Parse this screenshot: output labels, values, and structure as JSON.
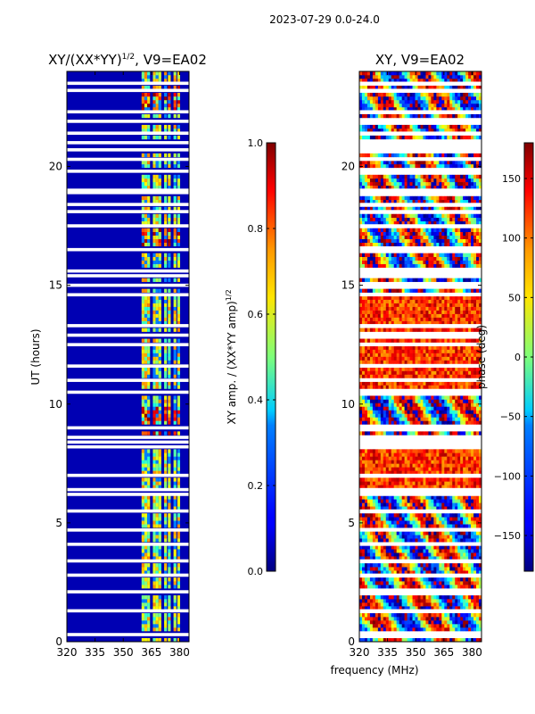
{
  "suptitle": "2023-07-29 0.0-24.0",
  "chart_data": [
    {
      "type": "heatmap",
      "title_prefix": "XY/(XX*YY)",
      "title_exponent": "1/2",
      "title_suffix": ", V9=EA02",
      "ylabel": "UT (hours)",
      "xlabel": "",
      "xlim": [
        320,
        385
      ],
      "ylim": [
        0,
        24
      ],
      "xticks": [
        320,
        335,
        350,
        365,
        380
      ],
      "yticks": [
        0,
        5,
        10,
        15,
        20
      ],
      "colormap": "jet",
      "colorbar": {
        "label_prefix": "XY amp. / (XX*YY amp)",
        "label_exponent": "1/2",
        "range": [
          0.0,
          1.0
        ],
        "ticks": [
          "0.0",
          "0.2",
          "0.4",
          "0.6",
          "0.8",
          "1.0"
        ],
        "tick_values": [
          0.0,
          0.2,
          0.4,
          0.6,
          0.8,
          1.0
        ]
      },
      "summary": {
        "background_value": 0.05,
        "band_channels_mhz": [
          360.5,
          362,
          363.5,
          366.5,
          368,
          369.5,
          372.5,
          374.5,
          377.5,
          379.5
        ],
        "high_ut_ranges": [
          [
            8.6,
            9.9
          ],
          [
            16.6,
            17.4
          ],
          [
            22.2,
            23.4
          ]
        ]
      }
    },
    {
      "type": "heatmap",
      "title": "XY, V9=EA02",
      "ylabel": "",
      "xlabel": "frequency (MHz)",
      "xlim": [
        320,
        385
      ],
      "ylim": [
        0,
        24
      ],
      "xticks": [
        320,
        335,
        350,
        365,
        380
      ],
      "yticks": [
        0,
        5,
        10,
        15,
        20
      ],
      "colormap": "jet",
      "colorbar": {
        "label": "phase (deg)",
        "range": [
          -180,
          180
        ],
        "ticks": [
          "−150",
          "−100",
          "−50",
          "0",
          "50",
          "100",
          "150"
        ],
        "tick_values": [
          -150,
          -100,
          -50,
          0,
          50,
          100,
          150
        ]
      },
      "summary": {
        "phase_range_deg": [
          -180,
          180
        ],
        "red_phase_ut_ranges": [
          [
            6.5,
            8.5
          ],
          [
            10.5,
            14.5
          ]
        ]
      }
    }
  ],
  "flagged_ut_rows": [
    0.3,
    1.3,
    2.1,
    2.8,
    3.4,
    4.1,
    4.7,
    5.5,
    6.2,
    6.4,
    7.0,
    8.2,
    8.4,
    8.6,
    9.0,
    10.5,
    11.0,
    11.6,
    12.5,
    12.9,
    13.3,
    14.6,
    15.0,
    15.4,
    15.6,
    16.5,
    17.5,
    18.1,
    18.4,
    18.9,
    19.0,
    19.8,
    20.3,
    20.7,
    21.0,
    21.4,
    21.9,
    22.3,
    23.2,
    23.5
  ]
}
